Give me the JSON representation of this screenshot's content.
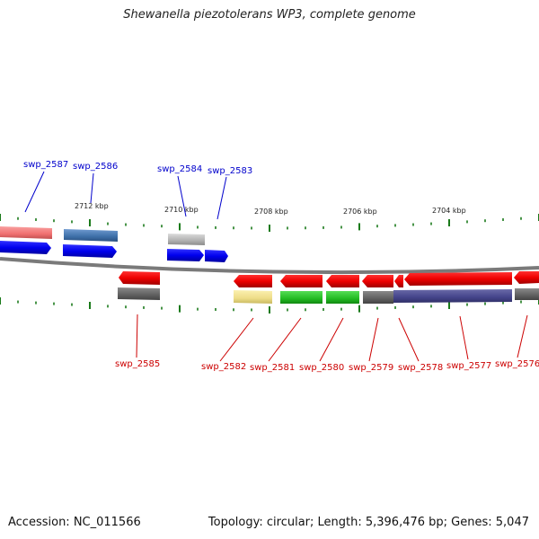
{
  "title": "Shewanella piezotolerans WP3, complete genome",
  "accession": "Accession: NC_011566",
  "summary": "Topology: circular; Length: 5,396,476 bp; Genes: 5,047",
  "scale_labels": [
    "2712 kbp",
    "2710 kbp",
    "2708 kbp",
    "2706 kbp",
    "2704 kbp"
  ],
  "genes": [
    {
      "name": "swp_2587",
      "strand": "+",
      "color": "#0000cc"
    },
    {
      "name": "swp_2586",
      "strand": "+",
      "color": "#0000cc"
    },
    {
      "name": "swp_2584",
      "strand": "+",
      "color": "#0000cc"
    },
    {
      "name": "swp_2583",
      "strand": "+",
      "color": "#0000cc"
    },
    {
      "name": "swp_2585",
      "strand": "-",
      "color": "#cc0000"
    },
    {
      "name": "swp_2582",
      "strand": "-",
      "color": "#cc0000"
    },
    {
      "name": "swp_2581",
      "strand": "-",
      "color": "#cc0000"
    },
    {
      "name": "swp_2580",
      "strand": "-",
      "color": "#cc0000"
    },
    {
      "name": "swp_2579",
      "strand": "-",
      "color": "#cc0000"
    },
    {
      "name": "swp_2578",
      "strand": "-",
      "color": "#cc0000"
    },
    {
      "name": "swp_2577",
      "strand": "-",
      "color": "#cc0000"
    },
    {
      "name": "swp_2576",
      "strand": "-",
      "color": "#cc0000"
    }
  ],
  "colors": {
    "forward_gene": "#0000ee",
    "reverse_gene": "#ee0000",
    "tick": "#1a7a1a",
    "backbone": "#888888"
  }
}
